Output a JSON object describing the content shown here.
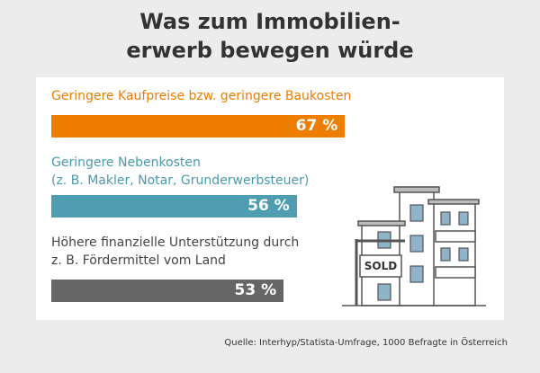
{
  "chart_data": {
    "type": "bar",
    "orientation": "horizontal",
    "title": "Was zum Immobilien-\nerwerb bewegen würde",
    "categories": [
      "Geringere Kaufpreise bzw. geringere Baukosten",
      "Geringere Nebenkosten\n(z. B. Makler, Notar, Grunderwerbsteuer)",
      "Höhere finanzielle Unterstützung durch\nz. B. Fördermittel vom Land"
    ],
    "values": [
      67,
      56,
      53
    ],
    "value_labels": [
      "67 %",
      "56 %",
      "53 %"
    ],
    "colors": [
      "#ee7d00",
      "#4e9db0",
      "#666666"
    ],
    "label_colors": [
      "#ee7d00",
      "#4a9aae",
      "#444444"
    ],
    "xlim": [
      0,
      100
    ],
    "sign_text": "SOLD",
    "source": "Quelle: Interhyp/Statista-Umfrage, 1000 Befragte in Österreich"
  }
}
